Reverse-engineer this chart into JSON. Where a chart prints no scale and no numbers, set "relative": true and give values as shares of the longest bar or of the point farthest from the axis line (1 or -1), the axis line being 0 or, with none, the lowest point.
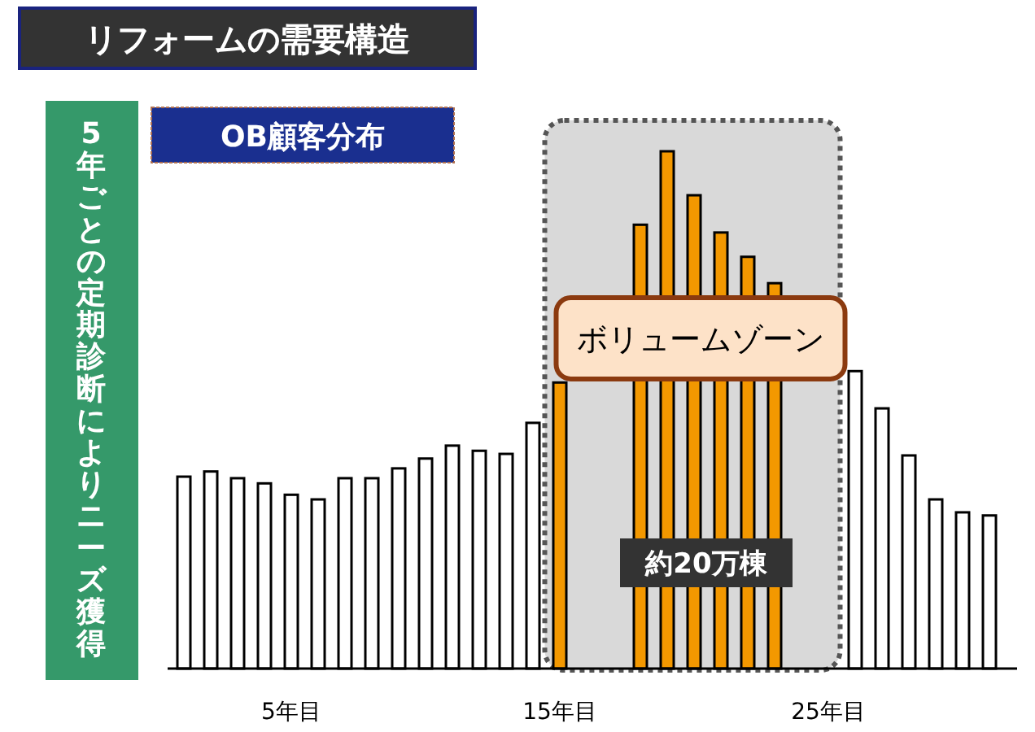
{
  "chart_data": {
    "type": "bar",
    "title": "リフォームの需要構造",
    "subtitle": "OB顧客分布",
    "ylabel": "5年ごとの定期診断によりニーズ獲得",
    "categories": [
      null,
      null,
      null,
      null,
      "5年目",
      null,
      null,
      null,
      null,
      null,
      null,
      null,
      null,
      null,
      "15年目",
      null,
      null,
      null,
      null,
      null,
      null,
      null,
      null,
      null,
      "25年目",
      null,
      null,
      null,
      null,
      null,
      null
    ],
    "values": [
      0.371,
      0.381,
      0.368,
      0.358,
      0.336,
      0.327,
      0.368,
      0.368,
      0.387,
      0.406,
      0.431,
      0.421,
      0.415,
      0.475,
      0.553,
      null,
      null,
      0.858,
      1,
      0.915,
      0.843,
      0.796,
      0.745,
      null,
      null,
      0.575,
      0.503,
      0.412,
      0.327,
      0.302,
      0.296
    ],
    "colors": [
      "#ffffff",
      "#ffffff",
      "#ffffff",
      "#ffffff",
      "#ffffff",
      "#ffffff",
      "#ffffff",
      "#ffffff",
      "#ffffff",
      "#ffffff",
      "#ffffff",
      "#ffffff",
      "#ffffff",
      "#ffffff",
      "#f39800",
      null,
      null,
      "#f39800",
      "#f39800",
      "#f39800",
      "#f39800",
      "#f39800",
      "#f39800",
      null,
      null,
      "#ffffff",
      "#ffffff",
      "#ffffff",
      "#ffffff",
      "#ffffff",
      "#ffffff"
    ],
    "relative": true,
    "bands": [
      {
        "axis": "x",
        "from": "15年目",
        "to": "25年目",
        "label": "ボリュームゾーン",
        "color": "#d9d9d9"
      }
    ],
    "annotations": [
      "約20万棟"
    ]
  }
}
